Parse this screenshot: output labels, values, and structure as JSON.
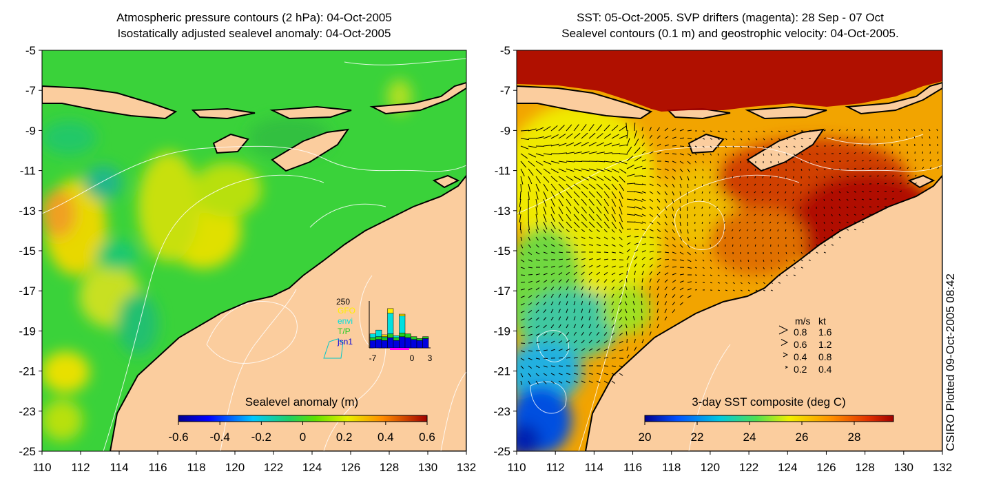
{
  "chart_data": [
    {
      "type": "heatmap",
      "title": "Atmospheric pressure contours (2 hPa): 04-Oct-2005",
      "subtitle": "Isostatically adjusted sealevel anomaly: 04-Oct-2005",
      "x_ticks": [
        110,
        112,
        114,
        116,
        118,
        120,
        122,
        124,
        126,
        128,
        130,
        132
      ],
      "y_ticks": [
        -5,
        -7,
        -9,
        -11,
        -13,
        -15,
        -17,
        -19,
        -21,
        -23,
        -25
      ],
      "xlim": [
        110,
        132
      ],
      "ylim": [
        -25,
        -5
      ],
      "colorbar": {
        "label": "Sealevel anomaly (m)",
        "range": [
          -0.6,
          0.6
        ],
        "ticks": [
          -0.6,
          -0.4,
          -0.2,
          0,
          0.2,
          0.4,
          0.6
        ],
        "tick_labels": [
          "-0.6",
          "-0.4",
          "-0.2",
          "0",
          "0.2",
          "0.4",
          "0.6"
        ]
      },
      "inset": {
        "top_label": "250",
        "legend": [
          {
            "name": "GFO",
            "color": "#ffee00"
          },
          {
            "name": "envi",
            "color": "#00e0e0"
          },
          {
            "name": "T/P",
            "color": "#22cc22"
          },
          {
            "name": "jsn1",
            "color": "#0000dd"
          }
        ],
        "x_ticks": [
          "-7",
          "0",
          "3"
        ],
        "bars": [
          {
            "x": -7,
            "jsn1": 40,
            "T/P": 15,
            "envi": 20,
            "GFO": 0
          },
          {
            "x": -6,
            "jsn1": 45,
            "T/P": 15,
            "envi": 35,
            "GFO": 0
          },
          {
            "x": -5,
            "jsn1": 40,
            "T/P": 15,
            "envi": 5,
            "GFO": 10
          },
          {
            "x": -4,
            "jsn1": 55,
            "T/P": 20,
            "envi": 110,
            "GFO": 25
          },
          {
            "x": -3,
            "jsn1": 40,
            "T/P": 15,
            "envi": 10,
            "GFO": 0
          },
          {
            "x": -2,
            "jsn1": 60,
            "T/P": 20,
            "envi": 90,
            "GFO": 10
          },
          {
            "x": -1,
            "jsn1": 55,
            "T/P": 20,
            "envi": 0,
            "GFO": 0
          },
          {
            "x": 0,
            "jsn1": 45,
            "T/P": 15,
            "envi": 0,
            "GFO": 0
          },
          {
            "x": 1,
            "jsn1": 40,
            "T/P": 10,
            "envi": 0,
            "GFO": 0
          },
          {
            "x": 2,
            "jsn1": 50,
            "T/P": 10,
            "envi": 0,
            "GFO": 0
          }
        ]
      }
    },
    {
      "type": "heatmap",
      "title": "SST: 05-Oct-2005. SVP drifters (magenta): 28 Sep - 07 Oct",
      "subtitle": "Sealevel contours (0.1 m) and geostrophic velocity: 04-Oct-2005.",
      "x_ticks": [
        110,
        112,
        114,
        116,
        118,
        120,
        122,
        124,
        126,
        128,
        130,
        132
      ],
      "y_ticks": [
        -5,
        -7,
        -9,
        -11,
        -13,
        -15,
        -17,
        -19,
        -21,
        -23,
        -25
      ],
      "xlim": [
        110,
        132
      ],
      "ylim": [
        -25,
        -5
      ],
      "colorbar": {
        "label": "3-day SST composite (deg C)",
        "range": [
          20,
          29.5
        ],
        "ticks": [
          20,
          22,
          24,
          26,
          28
        ],
        "tick_labels": [
          "20",
          "22",
          "24",
          "26",
          "28"
        ]
      },
      "velocity_key": {
        "header": [
          "m/s",
          "kt"
        ],
        "rows": [
          {
            "ms": "0.8",
            "kt": "1.6"
          },
          {
            "ms": "0.6",
            "kt": "1.2"
          },
          {
            "ms": "0.4",
            "kt": "0.8"
          },
          {
            "ms": "0.2",
            "kt": "0.4"
          }
        ]
      }
    }
  ],
  "credit": "CSIRO Plotted 09-Oct-2005 08:42"
}
